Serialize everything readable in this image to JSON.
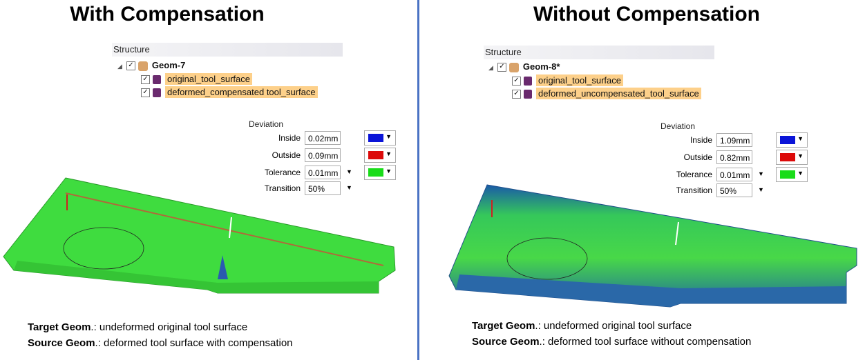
{
  "panels": [
    {
      "title": "With Compensation",
      "structure": {
        "label": "Structure",
        "root": "Geom-7",
        "items": [
          "original_tool_surface",
          "deformed_compensated tool_surface"
        ]
      },
      "deviation": {
        "label": "Deviation",
        "rows": [
          {
            "label": "Inside",
            "value": "0.02mm",
            "color": "#0a14d8"
          },
          {
            "label": "Outside",
            "value": "0.09mm",
            "color": "#dc0a0a"
          },
          {
            "label": "Tolerance",
            "value": "0.01mm",
            "color": "#19dc19"
          },
          {
            "label": "Transition",
            "value": "50%"
          }
        ]
      },
      "captions": [
        {
          "term": "Target Geom",
          "text": ".: undeformed original tool surface"
        },
        {
          "term": "Source Geom",
          "text": ".: deformed tool surface with compensation"
        }
      ]
    },
    {
      "title": "Without Compensation",
      "structure": {
        "label": "Structure",
        "root": "Geom-8*",
        "items": [
          "original_tool_surface",
          "deformed_uncompensated_tool_surface"
        ]
      },
      "deviation": {
        "label": "Deviation",
        "rows": [
          {
            "label": "Inside",
            "value": "1.09mm",
            "color": "#0a14d8"
          },
          {
            "label": "Outside",
            "value": "0.82mm",
            "color": "#dc0a0a"
          },
          {
            "label": "Tolerance",
            "value": "0.01mm",
            "color": "#19dc19"
          },
          {
            "label": "Transition",
            "value": "50%"
          }
        ]
      },
      "captions": [
        {
          "term": "Target Geom",
          "text": ".: undeformed original tool surface"
        },
        {
          "term": "Source Geom",
          "text": ".: deformed tool surface without compensation"
        }
      ]
    }
  ]
}
